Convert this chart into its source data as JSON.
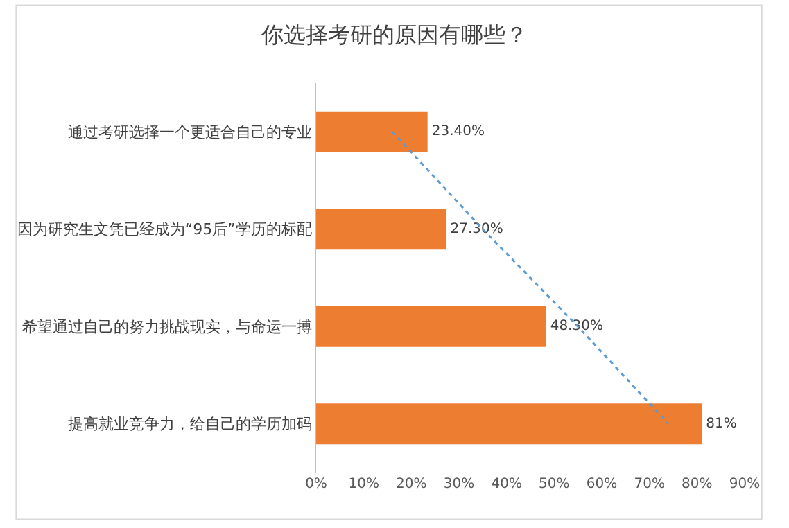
{
  "chart_data": {
    "type": "bar",
    "orientation": "horizontal",
    "title": "你选择考研的原因有哪些？",
    "categories": [
      "通过考研选择一个更适合自己的专业",
      "因为研究生文凭已经成为“95后”学历的标配",
      "希望通过自己的努力挑战现实，与命运一搏",
      "提高就业竞争力，给自己的学历加码"
    ],
    "series": [
      {
        "color": "#ed7d31",
        "values": [
          23.4,
          27.3,
          48.3,
          81
        ],
        "value_labels": [
          "23.40%",
          "27.30%",
          "48.30%",
          "81%"
        ]
      },
      {
        "type": "line",
        "color": "#5b9bd5",
        "line_style": "dotted",
        "values": [
          16,
          35,
          55,
          74
        ]
      }
    ],
    "xlim": [
      0,
      90
    ],
    "xticks": [
      {
        "value": 0,
        "label": "0%"
      },
      {
        "value": 10,
        "label": "10%"
      },
      {
        "value": 20,
        "label": "20%"
      },
      {
        "value": 30,
        "label": "30%"
      },
      {
        "value": 40,
        "label": "40%"
      },
      {
        "value": 50,
        "label": "50%"
      },
      {
        "value": 60,
        "label": "60%"
      },
      {
        "value": 70,
        "label": "70%"
      },
      {
        "value": 80,
        "label": "80%"
      },
      {
        "value": 90,
        "label": "90%"
      }
    ],
    "grid": false
  }
}
